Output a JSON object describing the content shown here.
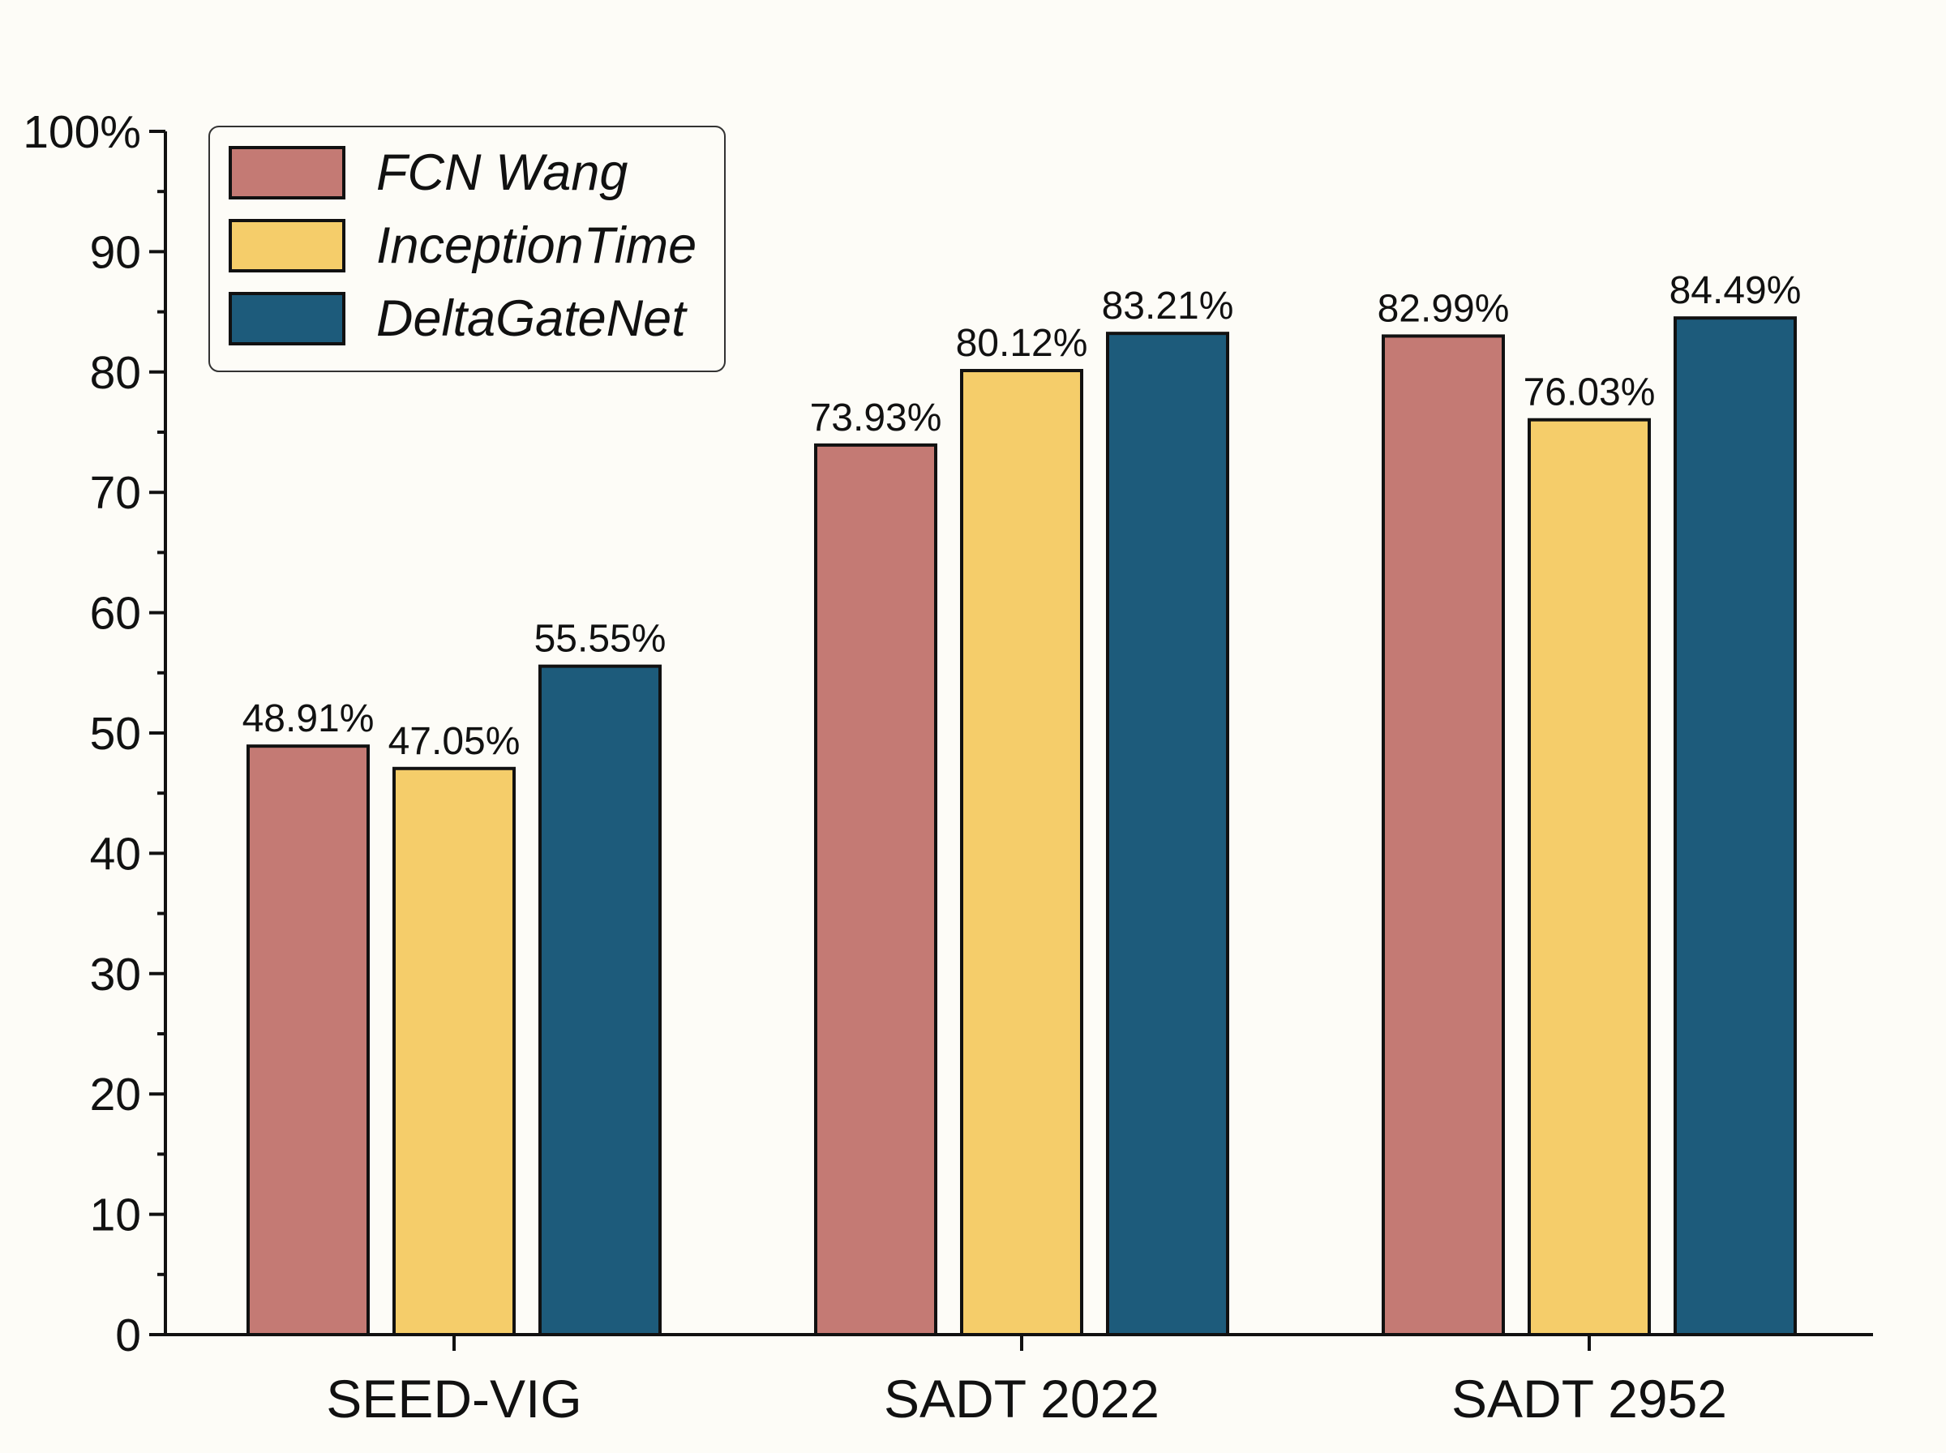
{
  "chart_data": {
    "type": "bar",
    "categories": [
      "SEED-VIG",
      "SADT 2022",
      "SADT 2952"
    ],
    "series": [
      {
        "name": "FCN Wang",
        "color": "#c47a74",
        "values": [
          48.91,
          73.93,
          82.99
        ],
        "labels": [
          "48.91%",
          "73.93%",
          "82.99%"
        ]
      },
      {
        "name": "InceptionTime",
        "color": "#f5cd6a",
        "values": [
          47.05,
          80.12,
          76.03
        ],
        "labels": [
          "47.05%",
          "80.12%",
          "76.03%"
        ]
      },
      {
        "name": "DeltaGateNet",
        "color": "#1d5b7b",
        "values": [
          55.55,
          83.21,
          84.49
        ],
        "labels": [
          "55.55%",
          "83.21%",
          "84.49%"
        ]
      }
    ],
    "ylim": [
      0,
      100
    ],
    "y_ticks": [
      "0",
      "10",
      "20",
      "30",
      "40",
      "50",
      "60",
      "70",
      "80",
      "90",
      "100%"
    ],
    "legend_position": "top-left",
    "grid": false
  }
}
